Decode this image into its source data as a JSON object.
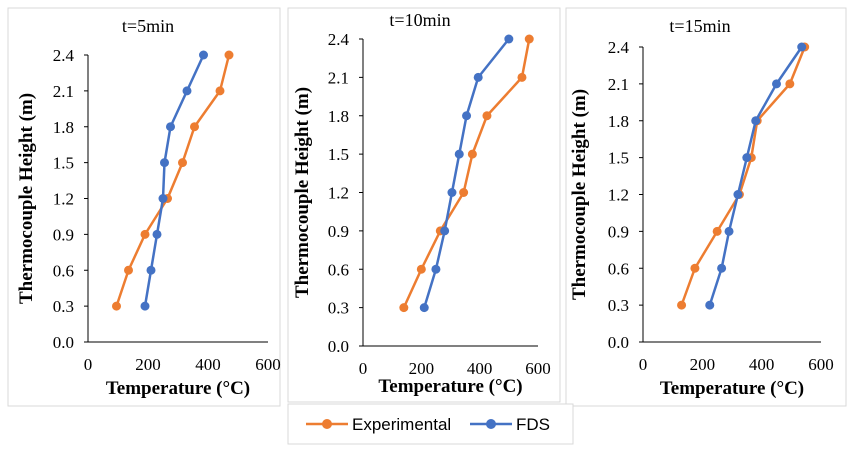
{
  "legend": {
    "entries": [
      {
        "name": "Experimental",
        "color": "#ED7D31"
      },
      {
        "name": "FDS",
        "color": "#4472C4"
      }
    ]
  },
  "chart_data": [
    {
      "type": "line",
      "title": "t=5min",
      "xlabel": "Temperature (°C)",
      "ylabel": "Thermocouple Height (m)",
      "xlim": [
        0,
        600
      ],
      "ylim": [
        0,
        2.4
      ],
      "x_ticks": [
        "0",
        "200",
        "400",
        "600"
      ],
      "y_ticks": [
        "0.0",
        "0.3",
        "0.6",
        "0.9",
        "1.2",
        "1.5",
        "1.8",
        "2.1",
        "2.4"
      ],
      "grid": false,
      "series": [
        {
          "name": "Experimental",
          "color": "#ED7D31",
          "points": [
            [
              95,
              0.3
            ],
            [
              135,
              0.6
            ],
            [
              190,
              0.9
            ],
            [
              265,
              1.2
            ],
            [
              315,
              1.5
            ],
            [
              355,
              1.8
            ],
            [
              440,
              2.1
            ],
            [
              470,
              2.4
            ]
          ]
        },
        {
          "name": "FDS",
          "color": "#4472C4",
          "points": [
            [
              190,
              0.3
            ],
            [
              210,
              0.6
            ],
            [
              230,
              0.9
            ],
            [
              250,
              1.2
            ],
            [
              255,
              1.5
            ],
            [
              275,
              1.8
            ],
            [
              330,
              2.1
            ],
            [
              385,
              2.4
            ]
          ]
        }
      ]
    },
    {
      "type": "line",
      "title": "t=10min",
      "xlabel": "Temperature (°C)",
      "ylabel": "Thermocouple Height (m)",
      "xlim": [
        0,
        600
      ],
      "ylim": [
        0,
        2.4
      ],
      "x_ticks": [
        "0",
        "200",
        "400",
        "600"
      ],
      "y_ticks": [
        "0.0",
        "0.3",
        "0.6",
        "0.9",
        "1.2",
        "1.5",
        "1.8",
        "2.1",
        "2.4"
      ],
      "grid": false,
      "series": [
        {
          "name": "Experimental",
          "color": "#ED7D31",
          "points": [
            [
              140,
              0.3
            ],
            [
              200,
              0.6
            ],
            [
              265,
              0.9
            ],
            [
              345,
              1.2
            ],
            [
              375,
              1.5
            ],
            [
              425,
              1.8
            ],
            [
              545,
              2.1
            ],
            [
              570,
              2.4
            ]
          ]
        },
        {
          "name": "FDS",
          "color": "#4472C4",
          "points": [
            [
              210,
              0.3
            ],
            [
              250,
              0.6
            ],
            [
              280,
              0.9
            ],
            [
              305,
              1.2
            ],
            [
              330,
              1.5
            ],
            [
              355,
              1.8
            ],
            [
              395,
              2.1
            ],
            [
              500,
              2.4
            ]
          ]
        }
      ]
    },
    {
      "type": "line",
      "title": "t=15min",
      "xlabel": "Temperature (°C)",
      "ylabel": "Thermocouple Height (m)",
      "xlim": [
        0,
        600
      ],
      "ylim": [
        0,
        2.4
      ],
      "x_ticks": [
        "0",
        "200",
        "400",
        "600"
      ],
      "y_ticks": [
        "0.0",
        "0.3",
        "0.6",
        "0.9",
        "1.2",
        "1.5",
        "1.8",
        "2.1",
        "2.4"
      ],
      "grid": false,
      "series": [
        {
          "name": "Experimental",
          "color": "#ED7D31",
          "points": [
            [
              130,
              0.3
            ],
            [
              175,
              0.6
            ],
            [
              250,
              0.9
            ],
            [
              325,
              1.2
            ],
            [
              365,
              1.5
            ],
            [
              385,
              1.8
            ],
            [
              495,
              2.1
            ],
            [
              545,
              2.4
            ]
          ]
        },
        {
          "name": "FDS",
          "color": "#4472C4",
          "points": [
            [
              225,
              0.3
            ],
            [
              265,
              0.6
            ],
            [
              290,
              0.9
            ],
            [
              320,
              1.2
            ],
            [
              350,
              1.5
            ],
            [
              380,
              1.8
            ],
            [
              450,
              2.1
            ],
            [
              535,
              2.4
            ]
          ]
        }
      ]
    }
  ]
}
